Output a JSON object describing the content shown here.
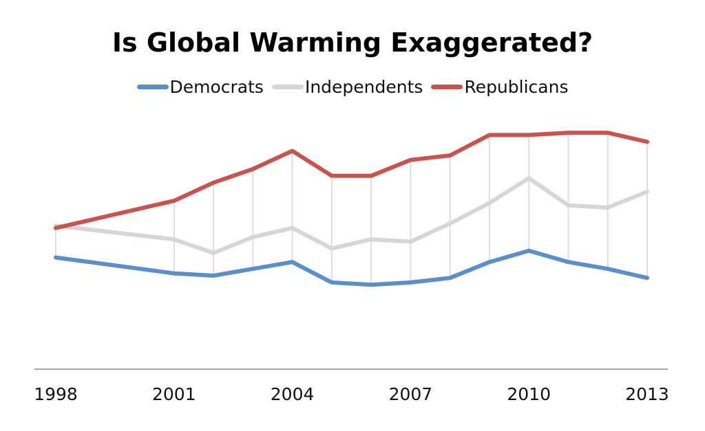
{
  "chart_data": {
    "type": "line",
    "title": "Is Global Warming Exaggerated?",
    "xlabel": "",
    "ylabel": "",
    "x": [
      1998,
      2001,
      2002,
      2003,
      2004,
      2005,
      2006,
      2007,
      2008,
      2009,
      2010,
      2011,
      2012,
      2013
    ],
    "x_ticks": [
      "1998",
      "2001",
      "2004",
      "2007",
      "2010",
      "2013"
    ],
    "ylim": [
      0,
      1
    ],
    "grid": false,
    "drop_lines": true,
    "legend_position": "top",
    "series": [
      {
        "name": "Democrats",
        "color": "#5b8fcb",
        "values": [
          0.38,
          0.31,
          0.3,
          0.33,
          0.36,
          0.27,
          0.26,
          0.27,
          0.29,
          0.36,
          0.41,
          0.36,
          0.33,
          0.29
        ]
      },
      {
        "name": "Independents",
        "color": "#d6d6d6",
        "values": [
          0.52,
          0.46,
          0.4,
          0.47,
          0.51,
          0.42,
          0.46,
          0.45,
          0.53,
          0.62,
          0.73,
          0.61,
          0.6,
          0.67
        ]
      },
      {
        "name": "Republicans",
        "color": "#c9544f",
        "values": [
          0.51,
          0.63,
          0.71,
          0.77,
          0.85,
          0.74,
          0.74,
          0.81,
          0.83,
          0.92,
          0.92,
          0.93,
          0.93,
          0.89
        ]
      }
    ]
  }
}
